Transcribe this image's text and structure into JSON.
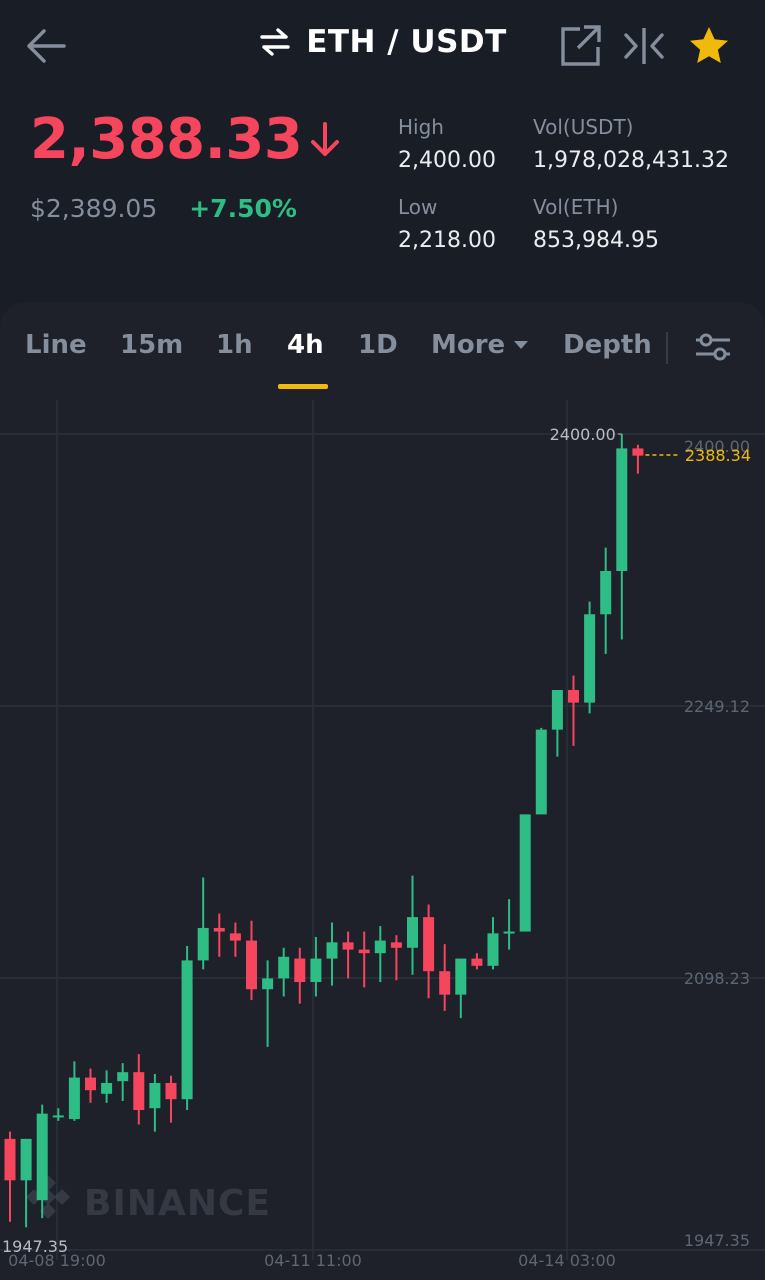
{
  "header": {
    "pair": "ETH / USDT",
    "icons": [
      "arrow-left-icon",
      "swap-icon",
      "external-link-icon",
      "compare-icon",
      "star-icon"
    ]
  },
  "ticker": {
    "last_price": "2,388.33",
    "usd_price": "$2,389.05",
    "change_pct": "+7.50%",
    "high_label": "High",
    "high": "2,400.00",
    "low_label": "Low",
    "low": "2,218.00",
    "vol_usdt_label": "Vol(USDT)",
    "vol_usdt": "1,978,028,431.32",
    "vol_eth_label": "Vol(ETH)",
    "vol_eth": "853,984.95"
  },
  "tabs": {
    "line": "Line",
    "m15": "15m",
    "h1": "1h",
    "h4": "4h",
    "d1": "1D",
    "more": "More",
    "depth": "Depth"
  },
  "colors": {
    "up": "#2ebd85",
    "down": "#f6465d",
    "accent": "#f0b90b",
    "bg": "#1e2129"
  },
  "chart_data": {
    "type": "candlestick",
    "interval": "4h",
    "y_ticks": [
      "2400.00",
      "2249.12",
      "2098.23",
      "1947.35"
    ],
    "x_ticks": [
      "04-08 19:00",
      "04-11 11:00",
      "04-14 03:00"
    ],
    "ylim": [
      1947.35,
      2400.0
    ],
    "max_label": "2400.00",
    "min_label": "1947.35",
    "last_label": "2388.34",
    "watermark": "BINANCE",
    "candles": [
      [
        2009,
        1986,
        2013,
        1963
      ],
      [
        1986,
        2009,
        2009,
        1960
      ],
      [
        1975,
        2023,
        2028,
        1965
      ],
      [
        2022,
        2022,
        2026,
        2019
      ],
      [
        2020,
        2043,
        2052,
        2019
      ],
      [
        2043,
        2036,
        2048,
        2029
      ],
      [
        2034,
        2040,
        2047,
        2029
      ],
      [
        2041,
        2046,
        2051,
        2030
      ],
      [
        2046,
        2025,
        2056,
        2017
      ],
      [
        2026,
        2040,
        2045,
        2013
      ],
      [
        2040,
        2031,
        2044,
        2018
      ],
      [
        2031,
        2108,
        2116,
        2025
      ],
      [
        2108,
        2126,
        2154,
        2103
      ],
      [
        2126,
        2124,
        2134,
        2110
      ],
      [
        2123,
        2119,
        2129,
        2110
      ],
      [
        2119,
        2092,
        2130,
        2086
      ],
      [
        2092,
        2098,
        2108,
        2060
      ],
      [
        2098,
        2110,
        2115,
        2088
      ],
      [
        2109,
        2096,
        2115,
        2084
      ],
      [
        2096,
        2109,
        2121,
        2088
      ],
      [
        2109,
        2118,
        2129,
        2094
      ],
      [
        2118,
        2114,
        2124,
        2098
      ],
      [
        2114,
        2112,
        2124,
        2093
      ],
      [
        2112,
        2119,
        2127,
        2096
      ],
      [
        2118,
        2115,
        2122,
        2097
      ],
      [
        2115,
        2132,
        2155,
        2100
      ],
      [
        2132,
        2102,
        2139,
        2087
      ],
      [
        2102,
        2089,
        2117,
        2080
      ],
      [
        2089,
        2109,
        2109,
        2076
      ],
      [
        2109,
        2105,
        2112,
        2103
      ],
      [
        2105,
        2123,
        2132,
        2103
      ],
      [
        2123,
        2124,
        2142,
        2114
      ],
      [
        2124,
        2189,
        2189,
        2124
      ],
      [
        2189,
        2236,
        2237,
        2190
      ],
      [
        2236,
        2258,
        2244,
        2221
      ],
      [
        2258,
        2251,
        2266,
        2227
      ],
      [
        2251,
        2300,
        2307,
        2245
      ],
      [
        2300,
        2324,
        2337,
        2278
      ],
      [
        2324,
        2392,
        2400,
        2286
      ],
      [
        2392,
        2388,
        2394,
        2378
      ]
    ]
  }
}
